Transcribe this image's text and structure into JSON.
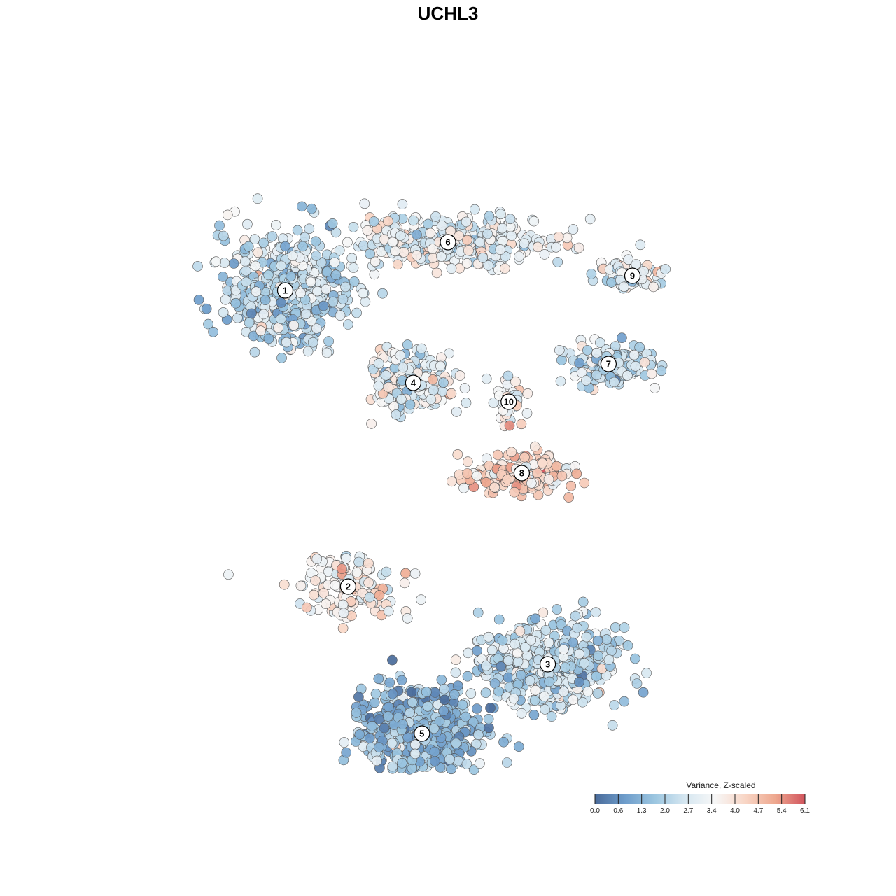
{
  "chart_data": {
    "type": "scatter",
    "title": "UCHL3",
    "legend": {
      "title": "Variance, Z-scaled",
      "ticks": [
        "0.0",
        "0.6",
        "1.3",
        "2.0",
        "2.7",
        "3.4",
        "4.0",
        "4.7",
        "5.4",
        "6.1"
      ],
      "min": 0.0,
      "max": 6.1,
      "colors": [
        "#4a6b9a",
        "#6e9dcb",
        "#9cc6e0",
        "#d6e7f1",
        "#f7f7f7",
        "#f8d6c6",
        "#eea88f",
        "#d1545d"
      ]
    },
    "clusters": [
      {
        "label": "1",
        "x": -7.5,
        "y": 7.5,
        "spread": [
          3.0,
          2.9
        ],
        "mean_value": 2.3,
        "n": 520
      },
      {
        "label": "6",
        "x": 0.0,
        "y": 9.8,
        "spread": [
          4.6,
          1.2
        ],
        "mean_value": 3.1,
        "n": 380
      },
      {
        "label": "9",
        "x": 8.5,
        "y": 8.2,
        "spread": [
          1.6,
          0.7
        ],
        "mean_value": 2.8,
        "n": 80
      },
      {
        "label": "4",
        "x": -1.6,
        "y": 3.1,
        "spread": [
          1.7,
          1.4
        ],
        "mean_value": 3.0,
        "n": 230
      },
      {
        "label": "10",
        "x": 2.8,
        "y": 2.2,
        "spread": [
          0.7,
          1.1
        ],
        "mean_value": 3.4,
        "n": 40
      },
      {
        "label": "7",
        "x": 7.4,
        "y": 4.0,
        "spread": [
          2.0,
          0.9
        ],
        "mean_value": 2.3,
        "n": 140
      },
      {
        "label": "8",
        "x": 3.4,
        "y": -1.2,
        "spread": [
          2.6,
          0.9
        ],
        "mean_value": 4.3,
        "n": 200
      },
      {
        "label": "2",
        "x": -4.6,
        "y": -6.6,
        "spread": [
          2.3,
          1.5
        ],
        "mean_value": 3.5,
        "n": 130
      },
      {
        "label": "3",
        "x": 4.6,
        "y": -10.3,
        "spread": [
          3.2,
          2.0
        ],
        "mean_value": 2.4,
        "n": 440
      },
      {
        "label": "5",
        "x": -1.2,
        "y": -13.6,
        "spread": [
          2.7,
          2.2
        ],
        "mean_value": 1.5,
        "n": 560
      }
    ]
  }
}
